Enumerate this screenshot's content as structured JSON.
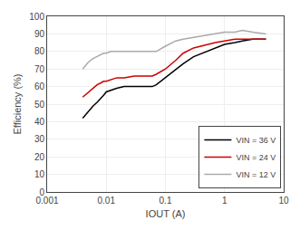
{
  "chart_data": {
    "type": "line",
    "xlabel": "IOUT (A)",
    "ylabel": "Efficiency (%)",
    "log": "x",
    "xlim": [
      0.001,
      10
    ],
    "xticks": [
      0.001,
      0.01,
      0.1,
      1,
      10
    ],
    "ylim": [
      0,
      100
    ],
    "yticks": [
      0,
      10,
      20,
      30,
      40,
      50,
      60,
      70,
      80,
      90,
      100
    ],
    "grid": true,
    "legend": "lower right",
    "series": [
      {
        "name": "VIN = 36 V",
        "color": "#000000",
        "x": [
          0.004,
          0.005,
          0.006,
          0.007,
          0.008,
          0.009,
          0.01,
          0.012,
          0.015,
          0.02,
          0.03,
          0.04,
          0.05,
          0.06,
          0.07,
          0.1,
          0.15,
          0.2,
          0.3,
          0.5,
          0.7,
          1.0,
          1.5,
          2.0,
          3.0,
          5.0
        ],
        "values": [
          42,
          46,
          49,
          51,
          53,
          55,
          57,
          58,
          59,
          60,
          60,
          60,
          60,
          60,
          61,
          65,
          70,
          73,
          77,
          80,
          82,
          84,
          85,
          86,
          87,
          87
        ]
      },
      {
        "name": "VIN = 24 V",
        "color": "#cc0000",
        "x": [
          0.004,
          0.005,
          0.006,
          0.007,
          0.008,
          0.009,
          0.01,
          0.012,
          0.015,
          0.02,
          0.03,
          0.04,
          0.05,
          0.06,
          0.07,
          0.1,
          0.15,
          0.2,
          0.3,
          0.5,
          0.7,
          1.0,
          1.5,
          2.0,
          3.0,
          5.0
        ],
        "values": [
          54,
          57,
          59,
          61,
          62,
          63,
          63,
          64,
          65,
          65,
          66,
          66,
          66,
          66,
          67,
          70,
          75,
          79,
          82,
          84,
          85,
          86,
          87,
          87,
          87,
          87
        ]
      },
      {
        "name": "VIN = 12 V",
        "color": "#aaaaaa",
        "x": [
          0.004,
          0.005,
          0.006,
          0.007,
          0.008,
          0.009,
          0.01,
          0.012,
          0.015,
          0.02,
          0.03,
          0.04,
          0.05,
          0.07,
          0.1,
          0.15,
          0.2,
          0.3,
          0.5,
          0.7,
          1.0,
          1.5,
          2.0,
          3.0,
          5.0
        ],
        "values": [
          70,
          74,
          76,
          77,
          78,
          79,
          79,
          80,
          80,
          80,
          80,
          80,
          80,
          80,
          83,
          86,
          87,
          88,
          89,
          90,
          91,
          91,
          92,
          91,
          90
        ]
      }
    ]
  }
}
